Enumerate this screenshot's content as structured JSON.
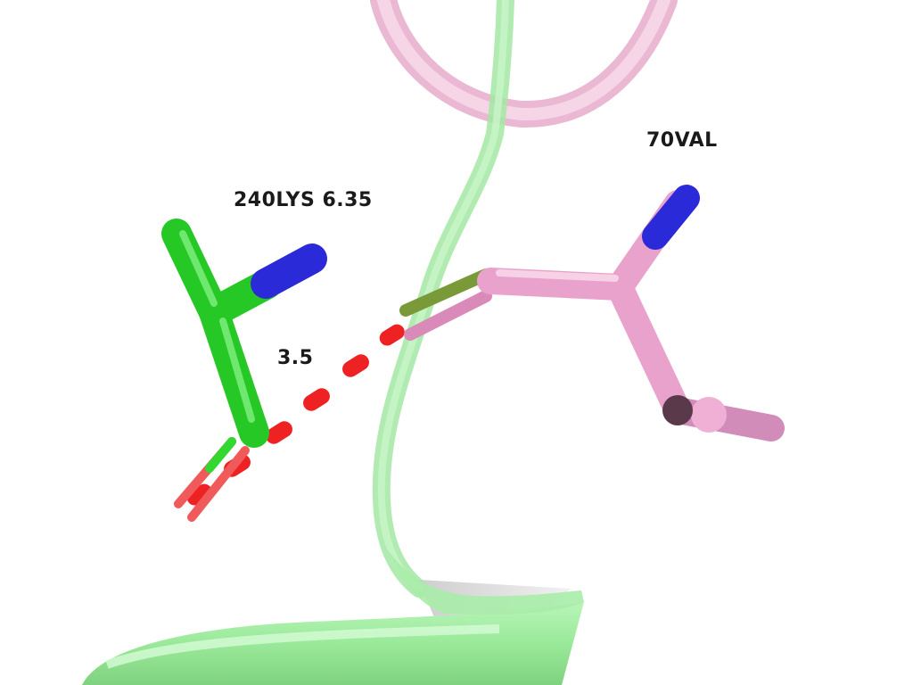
{
  "labels": {
    "residue_left": "240LYS 6.35",
    "residue_right": "70VAL",
    "distance": "3.5"
  },
  "colors": {
    "background": "#ffffff",
    "chain_a_carbon": "#22cc22",
    "chain_a_ribbon": "#90ee90",
    "chain_b_carbon": "#f0a8d0",
    "chain_b_ribbon": "#f2c6dc",
    "nitrogen": "#2222dd",
    "oxygen": "#ee2222",
    "hbond_dash": "#ff2a2a"
  }
}
